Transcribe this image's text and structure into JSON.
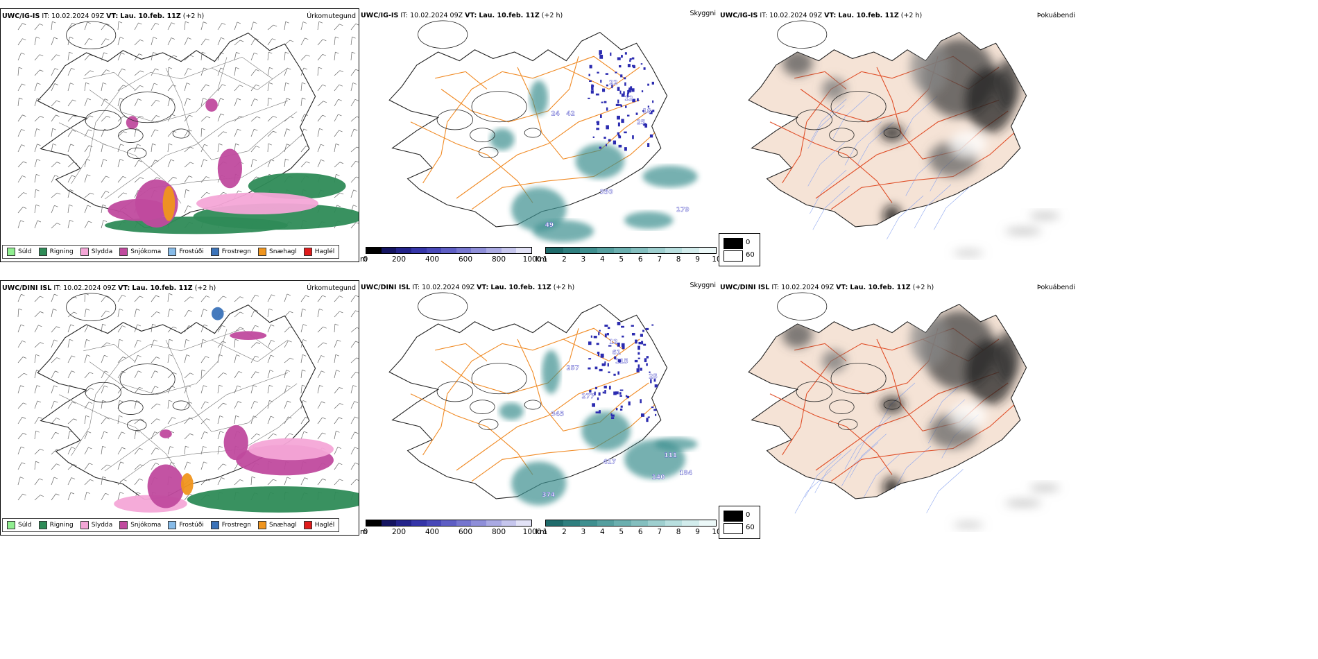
{
  "rows": [
    {
      "model": "UWC/IG-IS",
      "it_label": "IT:",
      "it": "10.02.2024 09Z",
      "vt_label": "VT:",
      "vt": "Lau. 10.feb. 11Z",
      "lead": "(+2 h)"
    },
    {
      "model": "UWC/DINI ISL",
      "it_label": "IT:",
      "it": "10.02.2024 09Z",
      "vt_label": "VT:",
      "vt": "Lau. 10.feb. 11Z",
      "lead": "(+2 h)"
    }
  ],
  "panels": {
    "precip": {
      "name": "Úrkomutegund"
    },
    "visibility": {
      "name": "Skyggni"
    },
    "fog": {
      "name": "Þokuábendi"
    }
  },
  "precip_legend": [
    {
      "label": "Súld",
      "color": "#90ee90"
    },
    {
      "label": "Rigning",
      "color": "#2e8b57"
    },
    {
      "label": "Slydda",
      "color": "#f4a6d7"
    },
    {
      "label": "Snjókoma",
      "color": "#c04a9e"
    },
    {
      "label": "Frostúði",
      "color": "#87bbe8"
    },
    {
      "label": "Frostregn",
      "color": "#3b73b9"
    },
    {
      "label": "Snæhagl",
      "color": "#f0951e"
    },
    {
      "label": "Haglél",
      "color": "#e01b1b"
    }
  ],
  "ceiling_bar": {
    "unit": "m",
    "ticks": [
      "0",
      "200",
      "400",
      "600",
      "800",
      "1000"
    ],
    "colors": [
      "#000000",
      "#141460",
      "#23238a",
      "#3535a8",
      "#4848b8",
      "#5e5ec4",
      "#7676cf",
      "#8f8fd9",
      "#aaaae3",
      "#c6c6ed",
      "#e2e2f6"
    ]
  },
  "visibility_bar": {
    "unit": "km",
    "ticks": [
      "1",
      "2",
      "3",
      "4",
      "5",
      "6",
      "7",
      "8",
      "9",
      "10"
    ],
    "colors": [
      "#1f6b6b",
      "#2f7f7f",
      "#3f8f8f",
      "#559f9f",
      "#6bafaf",
      "#84bfbf",
      "#9ecfcf",
      "#b8dfdf",
      "#d2ecec",
      "#ecf8f8"
    ]
  },
  "cloud_legend": {
    "values": [
      "0",
      "60"
    ],
    "colors": [
      "#000000",
      "#ffffff"
    ]
  },
  "vis_labels": [
    [
      "22",
      "12",
      "24",
      "42",
      "18",
      "25",
      "350",
      "179",
      "49"
    ],
    [
      "12",
      "61",
      "115",
      "257",
      "277",
      "25",
      "345",
      "417",
      "111",
      "140",
      "184",
      "374"
    ]
  ],
  "colors": {
    "coast": "#222222",
    "roads": "#f08a24",
    "fog_land": "#f5e3d6",
    "fog_roads": "#e0502a",
    "rivers": "#8fa8f0"
  }
}
